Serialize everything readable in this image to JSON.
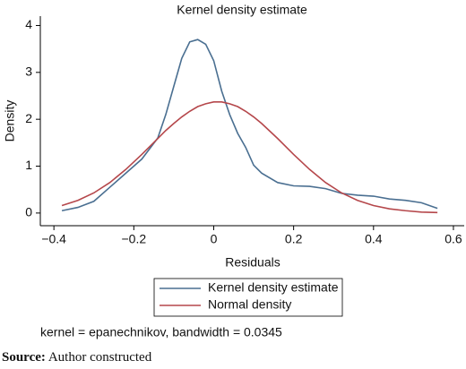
{
  "chart_data": {
    "type": "line",
    "title": "Kernel density estimate",
    "x_label": "Residuals",
    "y_label": "Density",
    "x": [
      -0.38,
      -0.34,
      -0.3,
      -0.26,
      -0.22,
      -0.18,
      -0.14,
      -0.12,
      -0.1,
      -0.08,
      -0.06,
      -0.04,
      -0.02,
      0,
      0.02,
      0.04,
      0.06,
      0.08,
      0.1,
      0.12,
      0.16,
      0.2,
      0.24,
      0.28,
      0.32,
      0.36,
      0.4,
      0.44,
      0.48,
      0.52,
      0.56
    ],
    "series": [
      {
        "name": "Kernel density estimate",
        "color": "#4a6f91",
        "values": [
          0.05,
          0.12,
          0.25,
          0.55,
          0.85,
          1.15,
          1.6,
          2.1,
          2.7,
          3.3,
          3.65,
          3.7,
          3.6,
          3.25,
          2.6,
          2.1,
          1.7,
          1.4,
          1.02,
          0.85,
          0.65,
          0.58,
          0.57,
          0.52,
          0.42,
          0.38,
          0.36,
          0.3,
          0.27,
          0.22,
          0.1
        ]
      },
      {
        "name": "Normal density",
        "color": "#b5474b",
        "values": [
          0.16,
          0.27,
          0.43,
          0.65,
          0.93,
          1.25,
          1.59,
          1.76,
          1.91,
          2.05,
          2.17,
          2.27,
          2.33,
          2.37,
          2.37,
          2.33,
          2.27,
          2.17,
          2.05,
          1.91,
          1.59,
          1.25,
          0.93,
          0.65,
          0.43,
          0.27,
          0.16,
          0.09,
          0.05,
          0.02,
          0.01
        ]
      }
    ],
    "xlim": [
      -0.434,
      0.627
    ],
    "ylim": [
      -0.27,
      4.2
    ],
    "xticks": [
      {
        "value": -0.4,
        "label": "−0.4"
      },
      {
        "value": -0.2,
        "label": "−0.2"
      },
      0,
      0.2,
      0.4,
      0.6
    ],
    "yticks": [
      0,
      1,
      2,
      3,
      4
    ],
    "grid": false,
    "note": "kernel = epanechnikov, bandwidth = 0.0345",
    "source_label": "Source:",
    "source_text": "Author constructed"
  }
}
